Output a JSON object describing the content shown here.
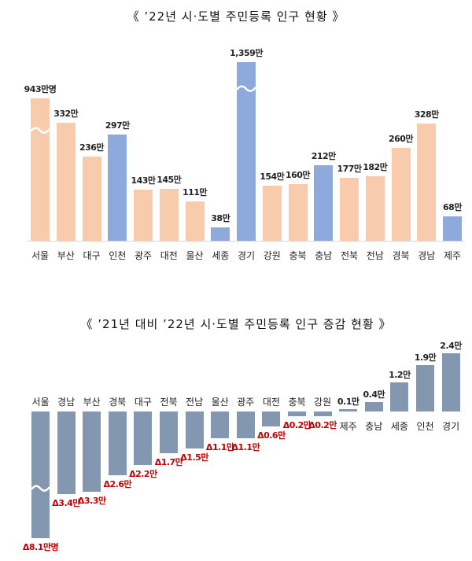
{
  "chart_data": [
    {
      "type": "bar",
      "title": "《 ’22년 시·도별 주민등록 인구 현황 》",
      "categories": [
        "서울",
        "부산",
        "대구",
        "인천",
        "광주",
        "대전",
        "울산",
        "세종",
        "경기",
        "강원",
        "충북",
        "충남",
        "전북",
        "전남",
        "경북",
        "경남",
        "제주"
      ],
      "values": [
        943,
        332,
        236,
        297,
        143,
        145,
        111,
        38,
        1359,
        154,
        160,
        212,
        177,
        182,
        260,
        328,
        68
      ],
      "labels": [
        "943만명",
        "332만",
        "236만",
        "297만",
        "143만",
        "145만",
        "111만",
        "38만",
        "1,359만",
        "154만",
        "160만",
        "212만",
        "177만",
        "182만",
        "260만",
        "328만",
        "68만"
      ],
      "unit": "만",
      "axis_break": [
        "서울",
        "경기"
      ],
      "colors": {
        "default": "#F8CBAD",
        "highlight": "#8EA9DB"
      },
      "highlighted": [
        "인천",
        "세종",
        "경기",
        "충남",
        "제주"
      ]
    },
    {
      "type": "bar",
      "title": "《 ’21년 대비 ’22년 시·도별 주민등록 인구 증감 현황 》",
      "categories": [
        "서울",
        "경남",
        "부산",
        "경북",
        "대구",
        "전북",
        "전남",
        "울산",
        "광주",
        "대전",
        "충북",
        "강원",
        "제주",
        "충남",
        "세종",
        "인천",
        "경기"
      ],
      "values": [
        -8.1,
        -3.4,
        -3.3,
        -2.6,
        -2.2,
        -1.7,
        -1.5,
        -1.1,
        -1.1,
        -0.6,
        -0.2,
        -0.2,
        0.1,
        0.4,
        1.2,
        1.9,
        2.4
      ],
      "labels": [
        "Δ8.1만명",
        "Δ3.4만",
        "Δ3.3만",
        "Δ2.6만",
        "Δ2.2만",
        "Δ1.7만",
        "Δ1.5만",
        "Δ1.1만",
        "Δ1.1만",
        "Δ0.6만",
        "Δ0.2만",
        "Δ0.2만",
        "0.1만",
        "0.4만",
        "1.2만",
        "1.9만",
        "2.4만"
      ],
      "unit": "만",
      "axis_break": [
        "서울"
      ],
      "colors": {
        "bar": "#8497B0",
        "negative_label": "#C00000",
        "positive_label": "#222222"
      }
    }
  ]
}
